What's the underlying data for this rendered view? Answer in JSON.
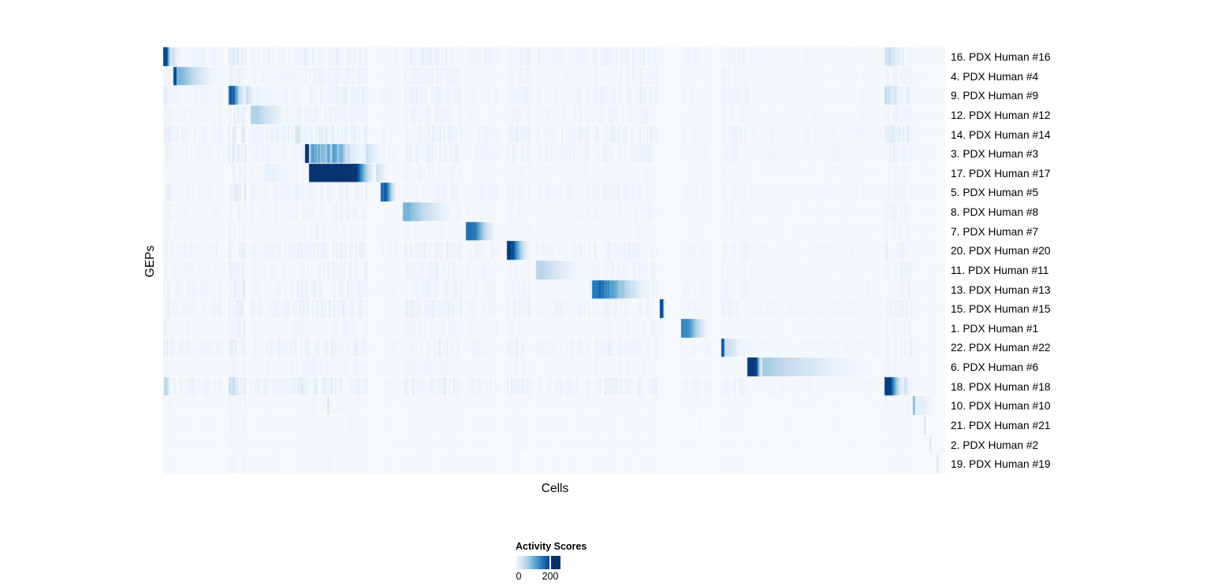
{
  "figure": {
    "x_axis_label": "Cells",
    "y_axis_label": "GEPs"
  },
  "chart_data": {
    "type": "heatmap",
    "title": "",
    "xlabel": "Cells",
    "ylabel": "GEPs",
    "grid": false,
    "legend": {
      "title": "Activity Scores",
      "position": "bottom",
      "ticks": [
        {
          "label": "0",
          "pos": 0.0
        },
        {
          "label": "200",
          "pos": 0.78
        }
      ]
    },
    "background": "#f5f8fc",
    "color_ramp": [
      "#f7fbff",
      "#deebf7",
      "#c6dbef",
      "#9ecae1",
      "#6baed6",
      "#4292c6",
      "#2171b5",
      "#08519c",
      "#08306b"
    ],
    "rows": [
      {
        "label": "16. PDX Human #16",
        "blocks": [
          {
            "s": 0.0,
            "e": 0.012,
            "peak": 1.0,
            "plateau": 0.35,
            "stripes": 0.2
          },
          {
            "s": 0.012,
            "e": 0.024,
            "peak": 0.22,
            "plateau": 0.0,
            "stripes": 0.1
          },
          {
            "s": 0.084,
            "e": 0.104,
            "peak": 0.14,
            "plateau": 0.4,
            "stripes": 0.6
          },
          {
            "s": 0.923,
            "e": 0.952,
            "peak": 0.26,
            "plateau": 0.25,
            "stripes": 0.65
          }
        ]
      },
      {
        "label": "4. PDX Human #4",
        "blocks": [
          {
            "s": 0.014,
            "e": 0.017,
            "peak": 0.9,
            "plateau": 1.0,
            "stripes": 0.0
          },
          {
            "s": 0.017,
            "e": 0.077,
            "peak": 0.5,
            "plateau": 0.1,
            "stripes": 0.15
          }
        ]
      },
      {
        "label": "9. PDX Human #9",
        "blocks": [
          {
            "s": 0.084,
            "e": 0.106,
            "peak": 0.9,
            "plateau": 0.25,
            "stripes": 0.25
          },
          {
            "s": 0.106,
            "e": 0.118,
            "peak": 0.28,
            "plateau": 0.0,
            "stripes": 0.1
          },
          {
            "s": 0.0,
            "e": 0.012,
            "peak": 0.12,
            "plateau": 0.4,
            "stripes": 0.5
          },
          {
            "s": 0.923,
            "e": 0.952,
            "peak": 0.3,
            "plateau": 0.25,
            "stripes": 0.65
          }
        ]
      },
      {
        "label": "12. PDX Human #12",
        "blocks": [
          {
            "s": 0.112,
            "e": 0.169,
            "peak": 0.32,
            "plateau": 0.15,
            "stripes": 0.1
          }
        ]
      },
      {
        "label": "14. PDX Human #14",
        "blocks": [
          {
            "s": 0.169,
            "e": 0.183,
            "peak": 0.18,
            "plateau": 0.3,
            "stripes": 0.25
          },
          {
            "s": 0.923,
            "e": 0.952,
            "peak": 0.16,
            "plateau": 0.25,
            "stripes": 0.6
          }
        ]
      },
      {
        "label": "3. PDX Human #3",
        "blocks": [
          {
            "s": 0.182,
            "e": 0.186,
            "peak": 1.0,
            "plateau": 1.0,
            "stripes": 0.0
          },
          {
            "s": 0.188,
            "e": 0.26,
            "peak": 0.62,
            "plateau": 0.5,
            "stripes": 0.55
          },
          {
            "s": 0.26,
            "e": 0.285,
            "peak": 0.24,
            "plateau": 0.0,
            "stripes": 0.2
          }
        ]
      },
      {
        "label": "17. PDX Human #17",
        "blocks": [
          {
            "s": 0.187,
            "e": 0.273,
            "peak": 1.0,
            "plateau": 0.7,
            "stripes": 0.04
          },
          {
            "s": 0.273,
            "e": 0.292,
            "peak": 0.2,
            "plateau": 0.0,
            "stripes": 0.0
          },
          {
            "s": 0.13,
            "e": 0.17,
            "peak": 0.1,
            "plateau": 0.3,
            "stripes": 0.4
          }
        ]
      },
      {
        "label": "5. PDX Human #5",
        "blocks": [
          {
            "s": 0.279,
            "e": 0.3,
            "peak": 0.92,
            "plateau": 0.28,
            "stripes": 0.2
          }
        ]
      },
      {
        "label": "8. PDX Human #8",
        "blocks": [
          {
            "s": 0.307,
            "e": 0.381,
            "peak": 0.5,
            "plateau": 0.08,
            "stripes": 0.12
          }
        ]
      },
      {
        "label": "7. PDX Human #7",
        "blocks": [
          {
            "s": 0.388,
            "e": 0.428,
            "peak": 0.78,
            "plateau": 0.25,
            "stripes": 0.1
          }
        ]
      },
      {
        "label": "20. PDX Human #20",
        "blocks": [
          {
            "s": 0.44,
            "e": 0.47,
            "peak": 1.0,
            "plateau": 0.22,
            "stripes": 0.15
          }
        ]
      },
      {
        "label": "11. PDX Human #11",
        "blocks": [
          {
            "s": 0.477,
            "e": 0.545,
            "peak": 0.3,
            "plateau": 0.12,
            "stripes": 0.1
          }
        ]
      },
      {
        "label": "13. PDX Human #13",
        "blocks": [
          {
            "s": 0.549,
            "e": 0.632,
            "peak": 0.82,
            "plateau": 0.16,
            "stripes": 0.2
          }
        ]
      },
      {
        "label": "15. PDX Human #15",
        "blocks": [
          {
            "s": 0.636,
            "e": 0.641,
            "peak": 0.9,
            "plateau": 0.5,
            "stripes": 0.0
          }
        ]
      },
      {
        "label": "1. PDX Human #1",
        "blocks": [
          {
            "s": 0.663,
            "e": 0.701,
            "peak": 0.72,
            "plateau": 0.2,
            "stripes": 0.1
          }
        ]
      },
      {
        "label": "22. PDX Human #22",
        "blocks": [
          {
            "s": 0.714,
            "e": 0.719,
            "peak": 0.85,
            "plateau": 0.5,
            "stripes": 0.0
          },
          {
            "s": 0.719,
            "e": 0.748,
            "peak": 0.22,
            "plateau": 0.2,
            "stripes": 0.1
          }
        ]
      },
      {
        "label": "6. PDX Human #6",
        "blocks": [
          {
            "s": 0.747,
            "e": 0.767,
            "peak": 1.0,
            "plateau": 0.55,
            "stripes": 0.08
          },
          {
            "s": 0.767,
            "e": 0.918,
            "peak": 0.38,
            "plateau": 0.0,
            "stripes": 0.08
          }
        ]
      },
      {
        "label": "18. PDX Human #18",
        "blocks": [
          {
            "s": 0.002,
            "e": 0.011,
            "peak": 0.38,
            "plateau": 0.3,
            "stripes": 0.5
          },
          {
            "s": 0.085,
            "e": 0.101,
            "peak": 0.3,
            "plateau": 0.3,
            "stripes": 0.5
          },
          {
            "s": 0.923,
            "e": 0.948,
            "peak": 1.0,
            "plateau": 0.28,
            "stripes": 0.1
          },
          {
            "s": 0.948,
            "e": 0.958,
            "peak": 0.22,
            "plateau": 0.0,
            "stripes": 0.0
          }
        ]
      },
      {
        "label": "10. PDX Human #10",
        "blocks": [
          {
            "s": 0.959,
            "e": 0.962,
            "peak": 0.45,
            "plateau": 0.5,
            "stripes": 0.0
          },
          {
            "s": 0.962,
            "e": 0.991,
            "peak": 0.1,
            "plateau": 0.3,
            "stripes": 0.0
          },
          {
            "s": 0.21,
            "e": 0.213,
            "peak": 0.15,
            "plateau": 0.5,
            "stripes": 0.0
          }
        ]
      },
      {
        "label": "21. PDX Human #21",
        "blocks": [
          {
            "s": 0.973,
            "e": 0.976,
            "peak": 0.15,
            "plateau": 0.5,
            "stripes": 0.0
          }
        ]
      },
      {
        "label": "2. PDX Human #2",
        "blocks": [
          {
            "s": 0.98,
            "e": 0.983,
            "peak": 0.12,
            "plateau": 0.5,
            "stripes": 0.0
          }
        ]
      },
      {
        "label": "19. PDX Human #19",
        "blocks": [
          {
            "s": 0.989,
            "e": 0.992,
            "peak": 0.12,
            "plateau": 0.5,
            "stripes": 0.0
          }
        ]
      }
    ],
    "streak_bands": [
      {
        "s": 0.0,
        "e": 0.013,
        "a": 0.1
      },
      {
        "s": 0.014,
        "e": 0.077,
        "a": 0.06
      },
      {
        "s": 0.084,
        "e": 0.106,
        "a": 0.14
      },
      {
        "s": 0.112,
        "e": 0.17,
        "a": 0.07
      },
      {
        "s": 0.17,
        "e": 0.186,
        "a": 0.1
      },
      {
        "s": 0.188,
        "e": 0.262,
        "a": 0.1
      },
      {
        "s": 0.28,
        "e": 0.3,
        "a": 0.05
      },
      {
        "s": 0.307,
        "e": 0.382,
        "a": 0.09
      },
      {
        "s": 0.388,
        "e": 0.428,
        "a": 0.06
      },
      {
        "s": 0.44,
        "e": 0.47,
        "a": 0.08
      },
      {
        "s": 0.477,
        "e": 0.546,
        "a": 0.06
      },
      {
        "s": 0.549,
        "e": 0.632,
        "a": 0.08
      },
      {
        "s": 0.663,
        "e": 0.701,
        "a": 0.05
      },
      {
        "s": 0.714,
        "e": 0.748,
        "a": 0.07
      },
      {
        "s": 0.747,
        "e": 0.918,
        "a": 0.04
      },
      {
        "s": 0.923,
        "e": 0.958,
        "a": 0.1
      },
      {
        "s": 0.959,
        "e": 0.991,
        "a": 0.03
      }
    ],
    "row_texture": [
      0.9,
      0.7,
      0.9,
      0.7,
      1.0,
      0.9,
      0.5,
      0.8,
      0.6,
      0.5,
      0.9,
      0.7,
      0.8,
      0.9,
      0.6,
      0.9,
      0.5,
      1.0,
      0.35,
      0.3,
      0.3,
      0.25
    ]
  }
}
